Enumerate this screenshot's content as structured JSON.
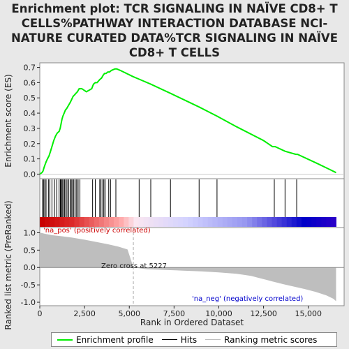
{
  "title": "Enrichment plot: TCR SIGNALING IN NAÏVE CD8+ T CELLS%PATHWAY INTERACTION DATABASE NCI-NATURE CURATED DATA%TCR SIGNALING IN NAÏVE CD8+ T CELLS",
  "colors": {
    "enrichment_line": "#00ee00",
    "hit_line": "#000000",
    "metric_fill": "#bebebe",
    "pos_label": "#cc0000",
    "neg_label": "#0000cc",
    "zero_cross_line": "#aaaaaa"
  },
  "chart_data": [
    {
      "type": "line",
      "name": "enrichment-profile",
      "ylabel": "Enrichment score (ES)",
      "xlim": [
        0,
        17000
      ],
      "ylim": [
        -0.03,
        0.73
      ],
      "yticks": [
        "0.0",
        "0.1",
        "0.2",
        "0.3",
        "0.4",
        "0.5",
        "0.6",
        "0.7"
      ],
      "grid": false,
      "x": [
        0,
        120,
        180,
        230,
        290,
        350,
        430,
        520,
        600,
        680,
        780,
        880,
        980,
        1080,
        1140,
        1190,
        1240,
        1290,
        1360,
        1430,
        1500,
        1600,
        1700,
        1780,
        1860,
        1940,
        2020,
        2100,
        2200,
        2350,
        2600,
        2900,
        3000,
        3100,
        3200,
        3350,
        3450,
        3550,
        3620,
        3700,
        3800,
        3900,
        4000,
        4200,
        4300,
        4500,
        5200,
        5600,
        6200,
        7300,
        8900,
        9900,
        11000,
        12500,
        13000,
        13150,
        13700,
        14300,
        14400,
        15500,
        16200,
        16550
      ],
      "y": [
        0.0,
        0.01,
        0.02,
        0.04,
        0.06,
        0.08,
        0.1,
        0.12,
        0.15,
        0.18,
        0.22,
        0.25,
        0.27,
        0.28,
        0.3,
        0.33,
        0.36,
        0.38,
        0.4,
        0.42,
        0.43,
        0.45,
        0.47,
        0.49,
        0.51,
        0.52,
        0.53,
        0.54,
        0.56,
        0.56,
        0.54,
        0.56,
        0.59,
        0.6,
        0.6,
        0.62,
        0.63,
        0.65,
        0.66,
        0.66,
        0.67,
        0.67,
        0.68,
        0.69,
        0.69,
        0.68,
        0.64,
        0.62,
        0.59,
        0.53,
        0.44,
        0.38,
        0.31,
        0.22,
        0.18,
        0.18,
        0.15,
        0.13,
        0.13,
        0.07,
        0.03,
        0.01
      ]
    },
    {
      "type": "scatter",
      "name": "hits",
      "x": [
        150,
        220,
        280,
        350,
        480,
        560,
        680,
        820,
        950,
        1080,
        1150,
        1200,
        1250,
        1300,
        1380,
        1450,
        1520,
        1620,
        1700,
        1760,
        1830,
        1900,
        1980,
        2060,
        2140,
        2240,
        2950,
        3100,
        3350,
        3420,
        3520,
        3580,
        3650,
        3850,
        3950,
        4250,
        5550,
        6200,
        7300,
        8900,
        9900,
        13100,
        13700,
        14350
      ]
    },
    {
      "type": "area",
      "name": "ranked-list-metric",
      "xlabel": "Rank in Ordered Dataset",
      "ylabel": "Ranked list metric (PreRanked)",
      "xlim": [
        0,
        17000
      ],
      "ylim": [
        -1.1,
        1.15
      ],
      "yticks": [
        "1.0",
        "0.5",
        "0.0",
        "-0.5",
        "-1.0"
      ],
      "xticks": [
        "0",
        "2,500",
        "5,000",
        "7,500",
        "10,000",
        "12,500",
        "15,000"
      ],
      "zero_cross": 5227,
      "zero_cross_label": "Zero cross at 5227",
      "pos_label": "'na_pos' (positively correlated)",
      "neg_label": "'na_neg' (negatively correlated)",
      "x": [
        0,
        50,
        300,
        700,
        1200,
        1800,
        2500,
        3200,
        3800,
        4400,
        4900,
        5227,
        6000,
        7000,
        8000,
        9000,
        10000,
        11000,
        11800,
        12400,
        13000,
        13600,
        14200,
        14800,
        15400,
        16000,
        16400,
        16550
      ],
      "y": [
        1.05,
        1.0,
        0.97,
        0.93,
        0.9,
        0.86,
        0.8,
        0.73,
        0.67,
        0.6,
        0.52,
        0.0,
        -0.05,
        -0.07,
        -0.09,
        -0.11,
        -0.14,
        -0.18,
        -0.24,
        -0.32,
        -0.4,
        -0.48,
        -0.55,
        -0.62,
        -0.7,
        -0.8,
        -0.9,
        -0.97
      ]
    }
  ],
  "legend": {
    "enrichment_label": "Enrichment profile",
    "hits_label": "Hits",
    "metric_label": "Ranking metric scores"
  }
}
